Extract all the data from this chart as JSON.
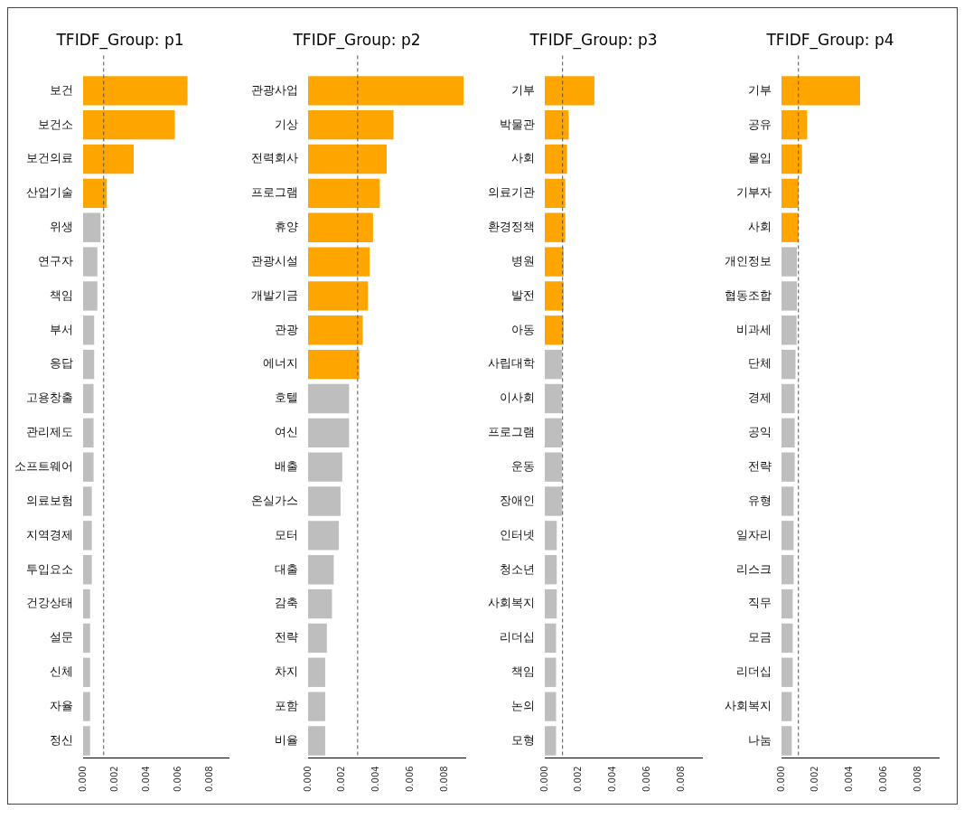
{
  "chart_data": [
    {
      "type": "bar",
      "orientation": "horizontal",
      "title": "TFIDF_Group: p1",
      "categories": [
        "보건",
        "보건소",
        "보건의료",
        "산업기술",
        "위생",
        "연구자",
        "책임",
        "부서",
        "응답",
        "고용창출",
        "관리제도",
        "소프트웨어",
        "의료보험",
        "지역경제",
        "투입요소",
        "건강상태",
        "설문",
        "신체",
        "자율",
        "정신"
      ],
      "values": [
        0.0066,
        0.0058,
        0.0032,
        0.0015,
        0.0011,
        0.0009,
        0.0009,
        0.0007,
        0.0007,
        0.00066,
        0.00066,
        0.00066,
        0.00055,
        0.00055,
        0.00055,
        0.00044,
        0.00044,
        0.00044,
        0.00044,
        0.00044
      ],
      "colors": [
        "#ffa500",
        "#ffa500",
        "#ffa500",
        "#ffa500",
        "#bebebe",
        "#bebebe",
        "#bebebe",
        "#bebebe",
        "#bebebe",
        "#bebebe",
        "#bebebe",
        "#bebebe",
        "#bebebe",
        "#bebebe",
        "#bebebe",
        "#bebebe",
        "#bebebe",
        "#bebebe",
        "#bebebe",
        "#bebebe"
      ],
      "xlim": [
        0,
        0.0092
      ],
      "xticks": [
        {
          "value": 0,
          "label": "0.000"
        },
        {
          "value": 0.002,
          "label": "0.002"
        },
        {
          "value": 0.004,
          "label": "0.004"
        },
        {
          "value": 0.006,
          "label": "0.006"
        },
        {
          "value": 0.008,
          "label": "0.008"
        }
      ],
      "ref_lines": [
        {
          "axis": "x",
          "value": 0.0013,
          "line_style": "dashed",
          "color": "#555555"
        }
      ],
      "grid": false,
      "legend": false
    },
    {
      "type": "bar",
      "orientation": "horizontal",
      "title": "TFIDF_Group: p2",
      "categories": [
        "관광사업",
        "기상",
        "전력회사",
        "프로그램",
        "휴양",
        "관광시설",
        "개발기금",
        "관광",
        "에너지",
        "호텔",
        "여신",
        "배출",
        "온실가스",
        "모터",
        "대출",
        "감축",
        "전략",
        "차지",
        "포함",
        "비율"
      ],
      "values": [
        0.0091,
        0.005,
        0.0046,
        0.0042,
        0.0038,
        0.0036,
        0.0035,
        0.0032,
        0.003,
        0.0024,
        0.0024,
        0.002,
        0.0019,
        0.0018,
        0.0015,
        0.0014,
        0.0011,
        0.001,
        0.001,
        0.001
      ],
      "colors": [
        "#ffa500",
        "#ffa500",
        "#ffa500",
        "#ffa500",
        "#ffa500",
        "#ffa500",
        "#ffa500",
        "#ffa500",
        "#ffa500",
        "#bebebe",
        "#bebebe",
        "#bebebe",
        "#bebebe",
        "#bebebe",
        "#bebebe",
        "#bebebe",
        "#bebebe",
        "#bebebe",
        "#bebebe",
        "#bebebe"
      ],
      "xlim": [
        0,
        0.0092
      ],
      "xticks": [
        {
          "value": 0,
          "label": "0.000"
        },
        {
          "value": 0.002,
          "label": "0.002"
        },
        {
          "value": 0.004,
          "label": "0.004"
        },
        {
          "value": 0.006,
          "label": "0.006"
        },
        {
          "value": 0.008,
          "label": "0.008"
        }
      ],
      "ref_lines": [
        {
          "axis": "x",
          "value": 0.0029,
          "line_style": "dashed",
          "color": "#555555"
        }
      ],
      "grid": false,
      "legend": false
    },
    {
      "type": "bar",
      "orientation": "horizontal",
      "title": "TFIDF_Group: p3",
      "categories": [
        "기부",
        "박물관",
        "사회",
        "의료기관",
        "환경정책",
        "병원",
        "발전",
        "아동",
        "사립대학",
        "이사회",
        "프로그램",
        "운동",
        "장애인",
        "인터넷",
        "청소년",
        "사회복지",
        "리더십",
        "책임",
        "논의",
        "모형"
      ],
      "values": [
        0.0029,
        0.0014,
        0.0013,
        0.0012,
        0.0012,
        0.0011,
        0.0011,
        0.0011,
        0.001,
        0.001,
        0.001,
        0.001,
        0.001,
        0.0007,
        0.0007,
        0.0007,
        0.00066,
        0.00066,
        0.00066,
        0.00066
      ],
      "colors": [
        "#ffa500",
        "#ffa500",
        "#ffa500",
        "#ffa500",
        "#ffa500",
        "#ffa500",
        "#ffa500",
        "#ffa500",
        "#bebebe",
        "#bebebe",
        "#bebebe",
        "#bebebe",
        "#bebebe",
        "#bebebe",
        "#bebebe",
        "#bebebe",
        "#bebebe",
        "#bebebe",
        "#bebebe",
        "#bebebe"
      ],
      "xlim": [
        0,
        0.0092
      ],
      "xticks": [
        {
          "value": 0,
          "label": "0.000"
        },
        {
          "value": 0.002,
          "label": "0.002"
        },
        {
          "value": 0.004,
          "label": "0.004"
        },
        {
          "value": 0.006,
          "label": "0.006"
        },
        {
          "value": 0.008,
          "label": "0.008"
        }
      ],
      "ref_lines": [
        {
          "axis": "x",
          "value": 0.00104,
          "line_style": "dashed",
          "color": "#555555"
        }
      ],
      "grid": false,
      "legend": false
    },
    {
      "type": "bar",
      "orientation": "horizontal",
      "title": "TFIDF_Group: p4",
      "categories": [
        "기부",
        "공유",
        "몰입",
        "기부자",
        "사회",
        "개인정보",
        "협동조합",
        "비과세",
        "단체",
        "경제",
        "공익",
        "전략",
        "유형",
        "일자리",
        "리스크",
        "직무",
        "모금",
        "리더십",
        "사회복지",
        "나눔"
      ],
      "values": [
        0.0046,
        0.0015,
        0.0012,
        0.001,
        0.001,
        0.0009,
        0.0009,
        0.00088,
        0.00082,
        0.00077,
        0.00077,
        0.00077,
        0.00071,
        0.00071,
        0.00071,
        0.00066,
        0.00066,
        0.00066,
        0.0006,
        0.0006
      ],
      "colors": [
        "#ffa500",
        "#ffa500",
        "#ffa500",
        "#ffa500",
        "#ffa500",
        "#bebebe",
        "#bebebe",
        "#bebebe",
        "#bebebe",
        "#bebebe",
        "#bebebe",
        "#bebebe",
        "#bebebe",
        "#bebebe",
        "#bebebe",
        "#bebebe",
        "#bebebe",
        "#bebebe",
        "#bebebe",
        "#bebebe"
      ],
      "xlim": [
        0,
        0.0092
      ],
      "xticks": [
        {
          "value": 0,
          "label": "0.000"
        },
        {
          "value": 0.002,
          "label": "0.002"
        },
        {
          "value": 0.004,
          "label": "0.004"
        },
        {
          "value": 0.006,
          "label": "0.006"
        },
        {
          "value": 0.008,
          "label": "0.008"
        }
      ],
      "ref_lines": [
        {
          "axis": "x",
          "value": 0.00099,
          "line_style": "dashed",
          "color": "#555555"
        }
      ],
      "grid": false,
      "legend": false
    }
  ]
}
